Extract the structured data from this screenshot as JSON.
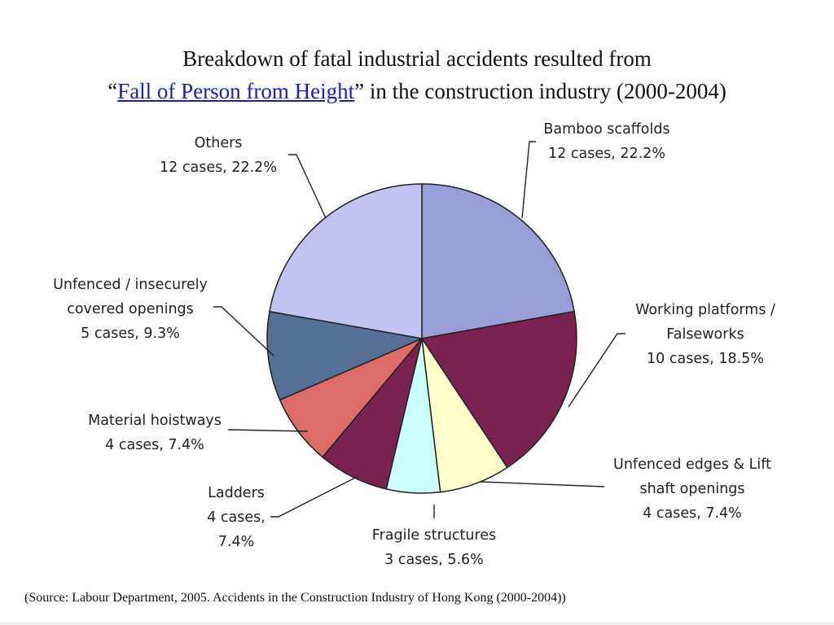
{
  "title": {
    "line1": "Breakdown of fatal industrial accidents resulted from",
    "open_quote": "“",
    "link_text": "Fall of Person from Height",
    "line2_rest": "” in the construction industry (2000-2004)"
  },
  "source": "(Source: Labour Department, 2005. Accidents in the Construction Industry of Hong Kong (2000-2004))",
  "chart_data": {
    "type": "pie",
    "start": "12 o'clock",
    "direction": "clockwise",
    "slices": [
      {
        "name": "Bamboo scaffolds",
        "cases": 12,
        "percent": 22.2,
        "color": "#989fd6",
        "label_lines": [
          "Bamboo scaffolds",
          "12 cases, 22.2%"
        ]
      },
      {
        "name": "Working platforms / Falseworks",
        "cases": 10,
        "percent": 18.5,
        "color": "#7a2350",
        "label_lines": [
          "Working platforms /",
          "Falseworks",
          "10 cases, 18.5%"
        ]
      },
      {
        "name": "Unfenced edges & Lift shaft openings",
        "cases": 4,
        "percent": 7.4,
        "color": "#ffffcc",
        "label_lines": [
          "Unfenced edges & Lift",
          "shaft openings",
          "4 cases, 7.4%"
        ]
      },
      {
        "name": "Fragile structures",
        "cases": 3,
        "percent": 5.6,
        "color": "#ccffff",
        "label_lines": [
          "Fragile structures",
          "3 cases, 5.6%"
        ]
      },
      {
        "name": "Ladders",
        "cases": 4,
        "percent": 7.4,
        "color": "#7a2350",
        "label_lines": [
          "Ladders",
          "4 cases,",
          "7.4%"
        ]
      },
      {
        "name": "Material hoistways",
        "cases": 4,
        "percent": 7.4,
        "color": "#dd6b66",
        "label_lines": [
          "Material hoistways",
          "4 cases, 7.4%"
        ]
      },
      {
        "name": "Unfenced / insecurely covered openings",
        "cases": 5,
        "percent": 9.3,
        "color": "#566f97",
        "label_lines": [
          "Unfenced / insecurely",
          "covered openings",
          "5 cases, 9.3%"
        ]
      },
      {
        "name": "Others",
        "cases": 12,
        "percent": 22.2,
        "color": "#c3c3f3",
        "label_lines": [
          "Others",
          "12 cases, 22.2%"
        ]
      }
    ]
  }
}
